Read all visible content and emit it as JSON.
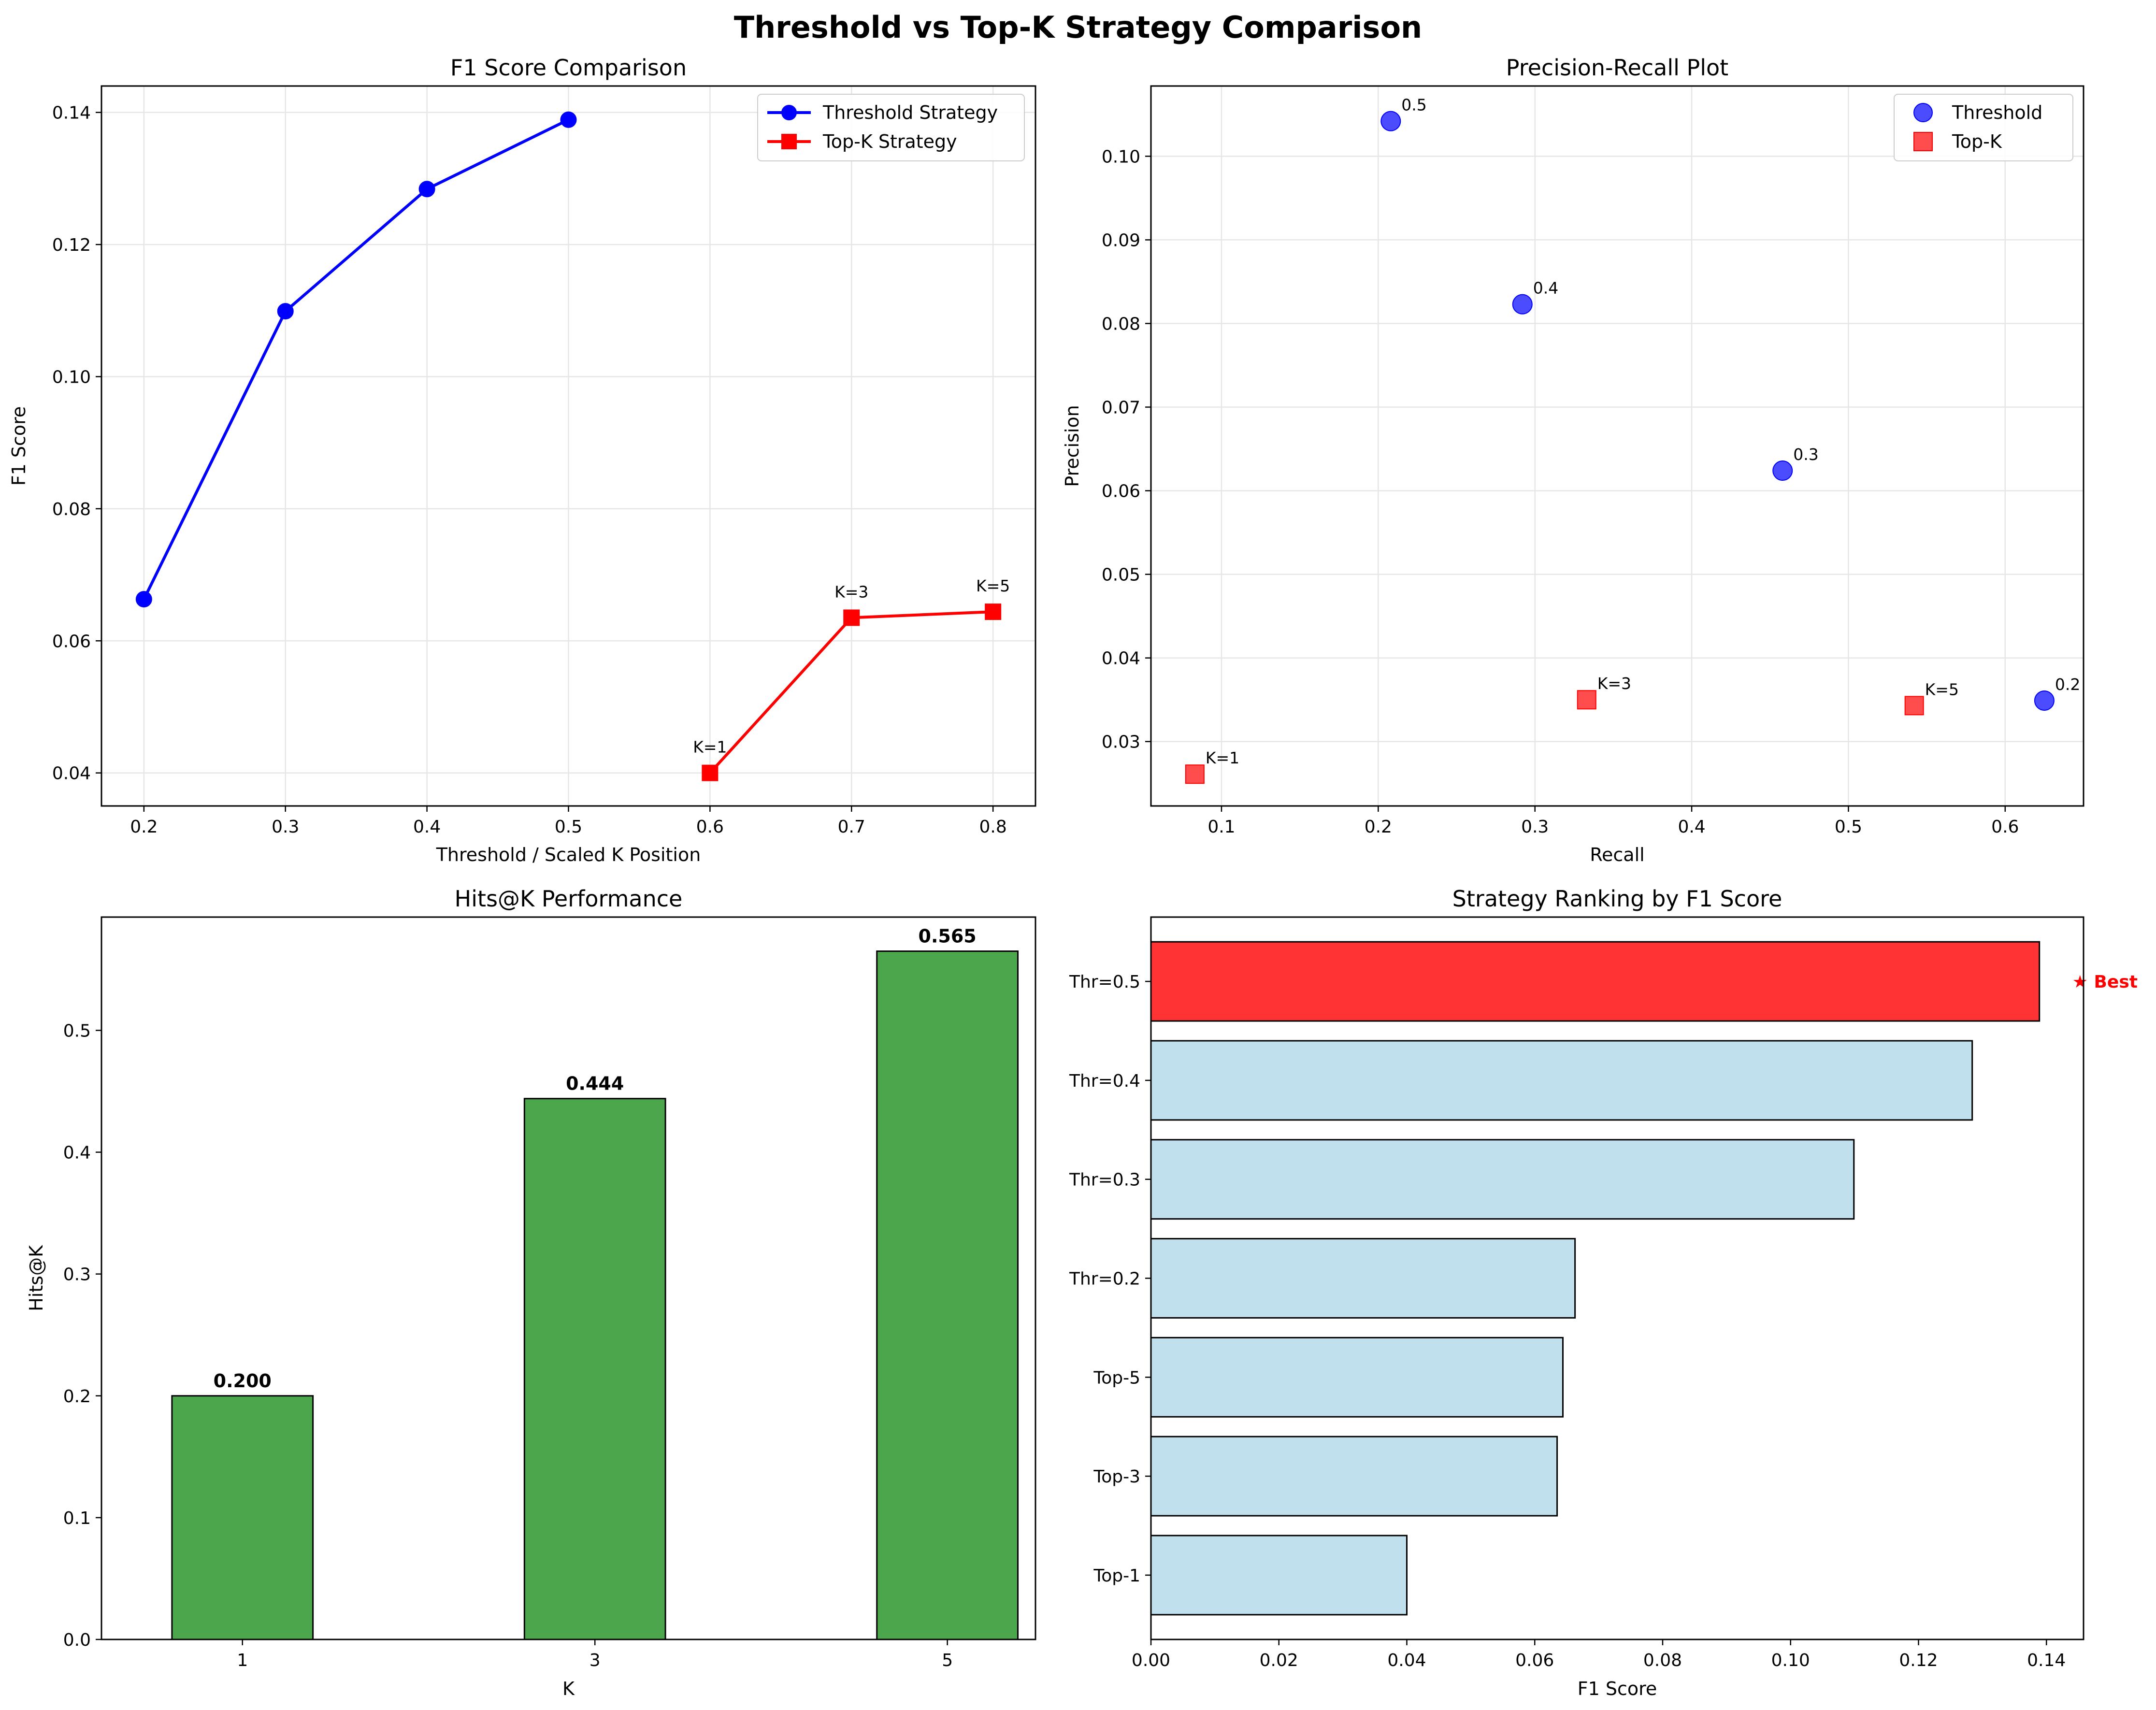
{
  "suptitle": "Threshold vs Top-K Strategy Comparison",
  "colors": {
    "threshold": "#0000ff",
    "topk": "#ff0000",
    "hits_bar": "#4ca64c",
    "rank_bar": "#bfe0ec",
    "best_bar": "#ff3333",
    "best_text": "#ff0000",
    "grid": "#e6e6e6"
  },
  "chart_data": [
    {
      "id": "f1",
      "type": "line",
      "title": "F1 Score Comparison",
      "xlabel": "Threshold / Scaled K Position",
      "ylabel": "F1 Score",
      "xlim": [
        0.17,
        0.83
      ],
      "ylim": [
        0.035,
        0.144
      ],
      "xticks": [
        0.2,
        0.3,
        0.4,
        0.5,
        0.6,
        0.7,
        0.8
      ],
      "yticks": [
        0.04,
        0.06,
        0.08,
        0.1,
        0.12,
        0.14
      ],
      "grid": true,
      "legend": "top-right",
      "series": [
        {
          "name": "Threshold Strategy",
          "marker": "circle",
          "x": [
            0.2,
            0.3,
            0.4,
            0.5
          ],
          "y": [
            0.0663,
            0.1099,
            0.1284,
            0.1389
          ]
        },
        {
          "name": "Top-K Strategy",
          "marker": "square",
          "x": [
            0.6,
            0.7,
            0.8
          ],
          "y": [
            0.04,
            0.0635,
            0.0644
          ]
        }
      ],
      "annotations": [
        {
          "text": "K=1",
          "x": 0.6,
          "y": 0.04
        },
        {
          "text": "K=3",
          "x": 0.7,
          "y": 0.0635
        },
        {
          "text": "K=5",
          "x": 0.8,
          "y": 0.0644
        }
      ]
    },
    {
      "id": "pr",
      "type": "scatter",
      "title": "Precision-Recall Plot",
      "xlabel": "Recall",
      "ylabel": "Precision",
      "xlim": [
        0.055,
        0.65
      ],
      "ylim": [
        0.0223,
        0.1084
      ],
      "xticks": [
        0.1,
        0.2,
        0.3,
        0.4,
        0.5,
        0.6
      ],
      "yticks": [
        0.03,
        0.04,
        0.05,
        0.06,
        0.07,
        0.08,
        0.09,
        0.1
      ],
      "grid": true,
      "legend": "top-right",
      "series": [
        {
          "name": "Threshold",
          "marker": "circle",
          "points": [
            {
              "x": 0.625,
              "y": 0.0349,
              "label": "0.2"
            },
            {
              "x": 0.458,
              "y": 0.0624,
              "label": "0.3"
            },
            {
              "x": 0.292,
              "y": 0.0823,
              "label": "0.4"
            },
            {
              "x": 0.208,
              "y": 0.1042,
              "label": "0.5"
            }
          ]
        },
        {
          "name": "Top-K",
          "marker": "square",
          "points": [
            {
              "x": 0.083,
              "y": 0.0261,
              "label": "K=1"
            },
            {
              "x": 0.333,
              "y": 0.035,
              "label": "K=3"
            },
            {
              "x": 0.542,
              "y": 0.0343,
              "label": "K=5"
            }
          ]
        }
      ]
    },
    {
      "id": "hits",
      "type": "bar",
      "title": "Hits@K Performance",
      "xlabel": "K",
      "ylabel": "Hits@K",
      "categories": [
        "1",
        "3",
        "5"
      ],
      "values": [
        0.2,
        0.444,
        0.565
      ],
      "value_labels": [
        "0.200",
        "0.444",
        "0.565"
      ],
      "ylim": [
        0,
        0.593
      ],
      "yticks": [
        0.0,
        0.1,
        0.2,
        0.3,
        0.4,
        0.5
      ],
      "grid": false
    },
    {
      "id": "rank",
      "type": "bar",
      "orientation": "horizontal",
      "title": "Strategy Ranking by F1 Score",
      "xlabel": "F1 Score",
      "ylabel": "",
      "categories": [
        "Thr=0.5",
        "Thr=0.4",
        "Thr=0.3",
        "Thr=0.2",
        "Top-5",
        "Top-3",
        "Top-1"
      ],
      "values": [
        0.1389,
        0.1284,
        0.1099,
        0.0663,
        0.0644,
        0.0635,
        0.04
      ],
      "xlim": [
        0,
        0.1458
      ],
      "xticks": [
        0.0,
        0.02,
        0.04,
        0.06,
        0.08,
        0.1,
        0.12,
        0.14
      ],
      "best_index": 0,
      "best_label": "★ Best",
      "grid": false
    }
  ]
}
